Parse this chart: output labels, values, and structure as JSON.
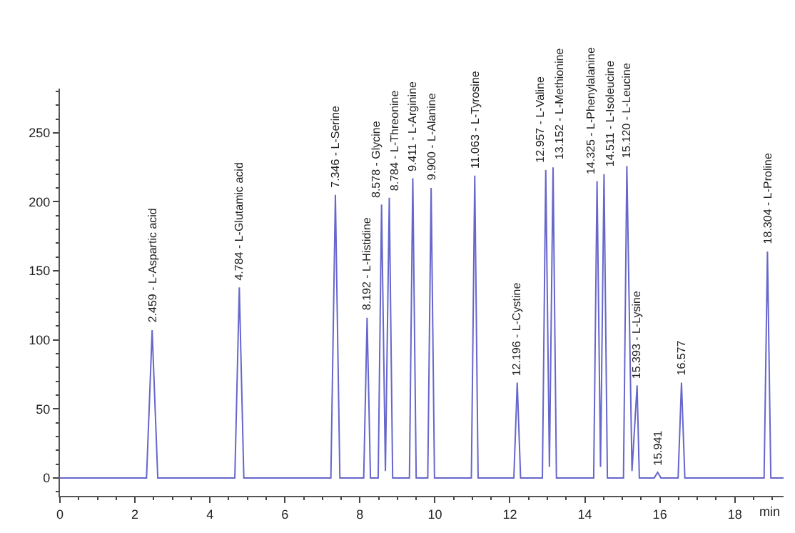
{
  "chart_data": {
    "type": "line",
    "xlabel": "min",
    "x": [
      0,
      2.309,
      2.459,
      2.609,
      4.664,
      4.784,
      4.904,
      7.226,
      7.346,
      7.466,
      8.102,
      8.192,
      8.282,
      8.488,
      8.578,
      8.68,
      8.784,
      8.874,
      9.321,
      9.411,
      9.501,
      9.81,
      9.9,
      9.99,
      10.973,
      11.063,
      11.153,
      12.106,
      12.196,
      12.286,
      12.867,
      12.957,
      13.055,
      13.152,
      13.242,
      14.235,
      14.325,
      14.418,
      14.511,
      14.601,
      15.03,
      15.12,
      15.257,
      15.393,
      15.453,
      15.85,
      15.941,
      16.03,
      16.487,
      16.577,
      16.667,
      18.78,
      18.87,
      18.96,
      19.3
    ],
    "series": [
      {
        "color": "#6666cc",
        "values": [
          0,
          0,
          107,
          0,
          0,
          138,
          0,
          0,
          205,
          0,
          0,
          116,
          0,
          0,
          198,
          5,
          203,
          0,
          0,
          217,
          0,
          0,
          210,
          0,
          0,
          219,
          0,
          0,
          69,
          0,
          0,
          223,
          8,
          225,
          0,
          0,
          215,
          8,
          220,
          0,
          0,
          226,
          5,
          67,
          0,
          0,
          4,
          0,
          0,
          69,
          0,
          0,
          164,
          0,
          0
        ]
      }
    ],
    "xlim": [
      0,
      19.3
    ],
    "ylim": [
      -13,
      282
    ],
    "xticks": [
      0,
      2,
      4,
      6,
      8,
      10,
      12,
      14,
      16,
      18
    ],
    "yticks": [
      0,
      50,
      100,
      150,
      200,
      250
    ],
    "marker": "none",
    "line_style": "solid",
    "annotations": [
      {
        "text": "2.459 - L-Aspartic acid",
        "x": 2.459,
        "y": 107
      },
      {
        "text": "4.784 - L-Glutamic acid",
        "x": 4.784,
        "y": 138
      },
      {
        "text": "7.346 - L-Serine",
        "x": 7.346,
        "y": 205
      },
      {
        "text": "8.192 - L-Histidine",
        "x": 8.192,
        "y": 116
      },
      {
        "text": "8.578 - Glycine",
        "x": 8.578,
        "y": 198
      },
      {
        "text": "8.784 - L-Threonine",
        "x": 8.784,
        "y": 203
      },
      {
        "text": "9.411 - L-Arginine",
        "x": 9.411,
        "y": 217
      },
      {
        "text": "9.900 - L-Alanine",
        "x": 9.9,
        "y": 210
      },
      {
        "text": "11.063 - L-Tyrosine",
        "x": 11.063,
        "y": 219
      },
      {
        "text": "12.196 - L-Cystine",
        "x": 12.196,
        "y": 69
      },
      {
        "text": "12.957 - L-Valine",
        "x": 12.957,
        "y": 223
      },
      {
        "text": "13.152 - L-Methionine",
        "x": 13.152,
        "y": 225
      },
      {
        "text": "14.325 - L-Phenylalanine",
        "x": 14.325,
        "y": 215
      },
      {
        "text": "14.511 - L-Isoleucine",
        "x": 14.511,
        "y": 220
      },
      {
        "text": "15.120 - L-Leucine",
        "x": 15.12,
        "y": 226
      },
      {
        "text": "15.393 - L-Lysine",
        "x": 15.393,
        "y": 67
      },
      {
        "text": "15.941",
        "x": 15.941,
        "y": 4
      },
      {
        "text": "16.577",
        "x": 16.577,
        "y": 69
      },
      {
        "text": "18.304 - L-Proline",
        "x": 18.87,
        "y": 164
      }
    ]
  }
}
